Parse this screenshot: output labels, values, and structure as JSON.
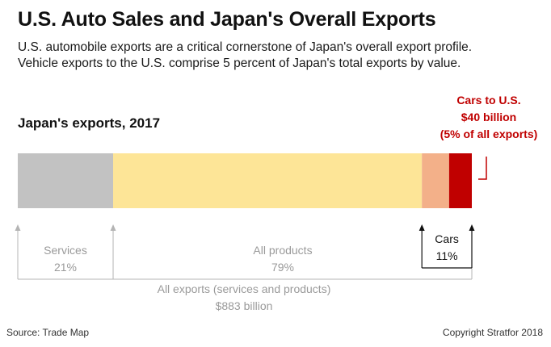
{
  "header": {
    "title": "U.S. Auto Sales and Japan's Overall Exports",
    "subtitle_lines": [
      "U.S. automobile exports are a critical cornerstone of Japan's overall export profile.",
      "Vehicle exports to the U.S. comprise 5 percent of Japan's total exports by value."
    ]
  },
  "chart_data": {
    "type": "bar",
    "orientation": "horizontal-stacked",
    "title": "Japan's exports, 2017",
    "total_label": [
      "All exports (services and products)",
      "$883 billion"
    ],
    "segments": [
      {
        "name": "Services",
        "share": 21,
        "color": "#c2c2c2",
        "label": [
          "Services",
          "21%"
        ]
      },
      {
        "name": "All products (other)",
        "share": 68,
        "color": "#fde597",
        "label": [
          "All products",
          "79%"
        ]
      },
      {
        "name": "Cars (other destinations)",
        "share": 6,
        "color": "#f3b089",
        "label": null
      },
      {
        "name": "Cars to U.S.",
        "share": 5,
        "color": "#c00000",
        "label": [
          "Cars to U.S.",
          "$40 billion",
          "(5% of all exports)"
        ]
      }
    ],
    "brackets": {
      "services": [
        "Services",
        "21%"
      ],
      "products": [
        "All products",
        "79%"
      ],
      "cars": [
        "Cars",
        "11%"
      ]
    },
    "callout": [
      "Cars to U.S.",
      "$40 billion",
      "(5% of all exports)"
    ],
    "callout_color": "#c00000"
  },
  "footer": {
    "source": "Source: Trade Map",
    "copyright": "Copyright Stratfor 2018"
  }
}
